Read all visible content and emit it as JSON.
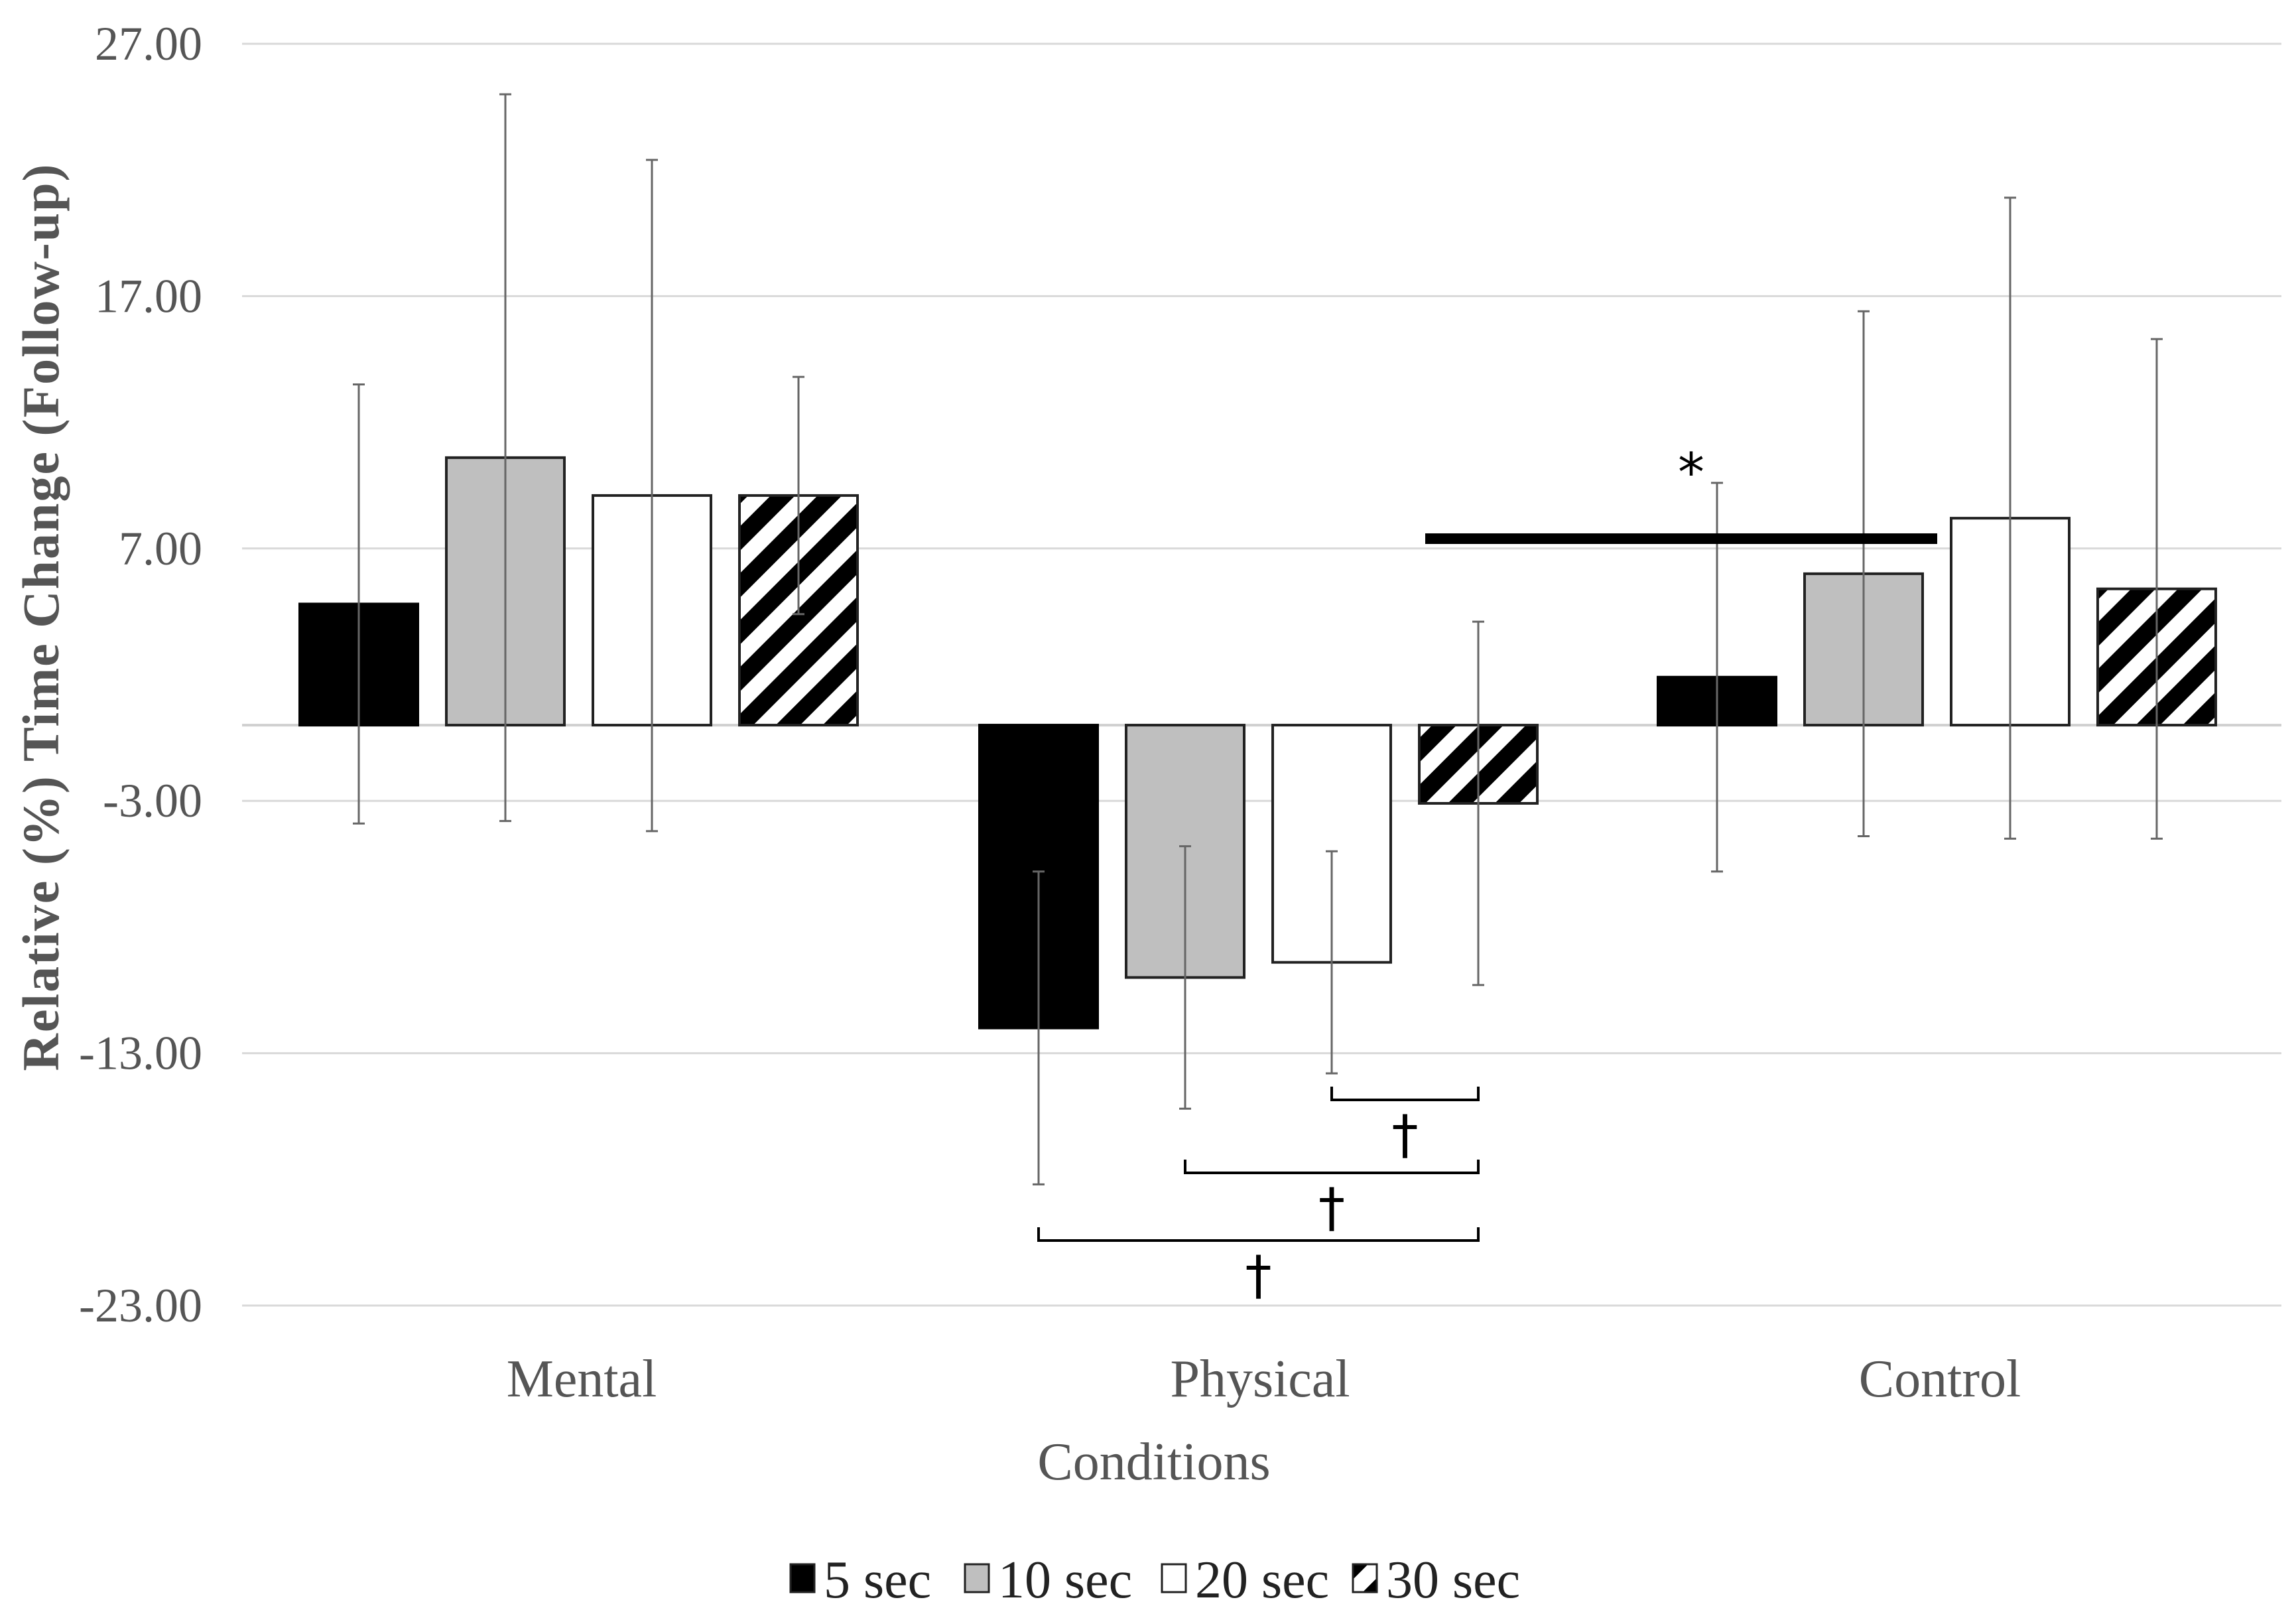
{
  "chart_data": {
    "type": "bar",
    "title": "",
    "xlabel": "Conditions",
    "ylabel": "Relative (%) Time Change (Follow-up)",
    "ylim": [
      -23,
      27
    ],
    "yticks": [
      27,
      17,
      7,
      -3,
      -13,
      -23
    ],
    "ytick_labels": [
      "27.00",
      "17.00",
      "7.00",
      "-3.00",
      "-13.00",
      "-23.00"
    ],
    "categories": [
      "Mental",
      "Physical",
      "Control"
    ],
    "series": [
      {
        "name": "5 sec",
        "fill": "solid-black",
        "values": [
          4.8,
          -12.0,
          1.9
        ],
        "error": [
          8.7,
          6.2,
          7.7
        ]
      },
      {
        "name": "10 sec",
        "fill": "gray",
        "values": [
          10.6,
          -10.0,
          6.0
        ],
        "error": [
          14.4,
          5.2,
          10.4
        ]
      },
      {
        "name": "20 sec",
        "fill": "white",
        "values": [
          9.1,
          -9.4,
          8.2
        ],
        "error": [
          13.3,
          4.4,
          12.7
        ]
      },
      {
        "name": "30 sec",
        "fill": "diagonal-hatch",
        "values": [
          9.1,
          -3.1,
          5.4
        ],
        "error": [
          4.7,
          7.2,
          9.9
        ]
      }
    ],
    "grid": true,
    "legend_position": "bottom-center",
    "annotations": {
      "asterisk": "*",
      "dagger": "†"
    }
  }
}
